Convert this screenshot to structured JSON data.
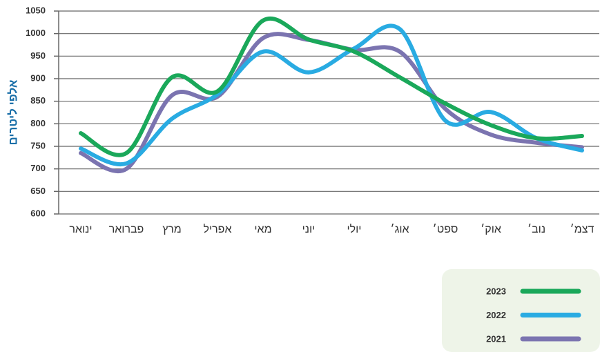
{
  "chart_data": {
    "type": "line",
    "y_label": "אלפי ליטרים",
    "categories": [
      "ינואר",
      "פברואר",
      "מרץ",
      "אפריל",
      "מאי",
      "יוני",
      "יולי",
      "אוג׳",
      "ספט׳",
      "אוק׳",
      "נוב׳",
      "דצמ׳"
    ],
    "series": [
      {
        "name": "2023",
        "color": "#1aa85a",
        "values": [
          779,
          735,
          903,
          872,
          1029,
          987,
          960,
          903,
          845,
          797,
          768,
          773
        ]
      },
      {
        "name": "2022",
        "color": "#29abe2",
        "values": [
          745,
          712,
          811,
          865,
          960,
          914,
          967,
          1010,
          807,
          826,
          768,
          741
        ]
      },
      {
        "name": "2021",
        "color": "#7b74b0",
        "values": [
          735,
          700,
          863,
          860,
          990,
          986,
          964,
          960,
          833,
          776,
          758,
          748
        ]
      }
    ],
    "ylim": [
      600,
      1050
    ],
    "yticks": [
      600,
      650,
      700,
      750,
      800,
      850,
      900,
      950,
      1000,
      1050
    ],
    "grid": true
  }
}
